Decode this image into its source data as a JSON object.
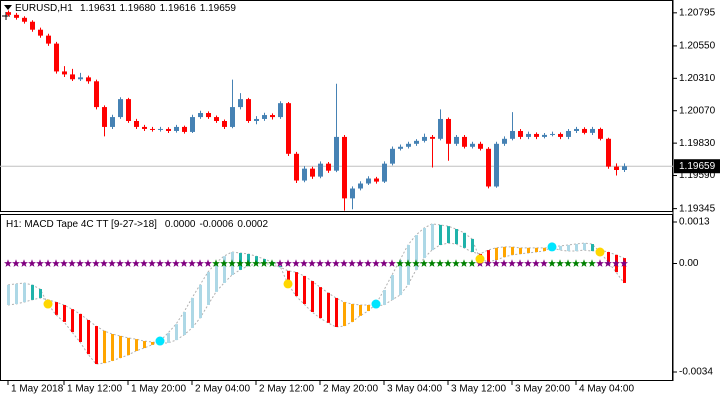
{
  "chart_data": [
    {
      "type": "candlestick",
      "title": "EURUSD,H1",
      "readout": [
        1.19631,
        {
          "value": 1.1968,
          "label": "1.19680"
        },
        1.19616,
        1.19659
      ],
      "current_price": 1.19659,
      "categories": [
        "1 May 2018",
        null,
        null,
        null,
        null,
        null,
        null,
        "1 May 12:00",
        null,
        null,
        null,
        null,
        null,
        null,
        null,
        "1 May 20:00",
        null,
        null,
        null,
        null,
        null,
        null,
        null,
        "2 May 04:00",
        null,
        null,
        null,
        null,
        null,
        null,
        null,
        "2 May 12:00",
        null,
        null,
        null,
        null,
        null,
        null,
        null,
        "2 May 20:00",
        null,
        null,
        null,
        null,
        null,
        null,
        null,
        "3 May 04:00",
        null,
        null,
        null,
        null,
        null,
        null,
        null,
        "3 May 12:00",
        null,
        null,
        null,
        null,
        null,
        null,
        null,
        "3 May 20:00",
        null,
        null,
        null,
        null,
        null,
        null,
        null,
        "4 May 04:00",
        null,
        null,
        null,
        null,
        null,
        null
      ],
      "open": [
        1.208,
        1.2078,
        1.20758,
        1.20729,
        1.2067,
        1.20626,
        1.20567,
        1.20361,
        1.20339,
        1.20303,
        1.20317,
        1.20288,
        1.20097,
        1.1995,
        1.20023,
        1.20156,
        1.19994,
        1.1995,
        1.19935,
        1.19928,
        1.19935,
        1.1992,
        1.1995,
        1.19913,
        1.20023,
        1.20053,
        1.20023,
        1.19994,
        1.1995,
        1.20097,
        1.20156,
        1.19994,
        1.20009,
        1.20038,
        1.20023,
        1.20126,
        1.19751,
        1.19553,
        1.19641,
        1.19582,
        1.19678,
        1.19626,
        1.19876,
        1.19421,
        1.19494,
        1.19531,
        1.19568,
        1.19545,
        1.19678,
        1.19788,
        1.19803,
        1.19825,
        1.19847,
        1.19876,
        1.19862,
        1.20009,
        1.19825,
        1.19876,
        1.19803,
        1.19825,
        1.19788,
        1.19509,
        1.19825,
        1.19862,
        1.1992,
        1.19876,
        1.19898,
        1.19876,
        1.19891,
        1.19898,
        1.19876,
        1.1992,
        1.19935,
        1.19906,
        1.19935,
        1.19862,
        1.19656,
        1.19631
      ],
      "high": [
        1.20812,
        1.20795,
        1.2077,
        1.2074,
        1.20685,
        1.2064,
        1.2058,
        1.204,
        1.2038,
        1.2035,
        1.2033,
        1.203,
        1.2011,
        1.2004,
        1.2017,
        1.20165,
        1.2001,
        1.19965,
        1.1995,
        1.1995,
        1.19948,
        1.19965,
        1.1996,
        1.2004,
        1.2007,
        1.20065,
        1.20035,
        1.20005,
        1.203,
        1.202,
        1.20165,
        1.2003,
        1.20055,
        1.2005,
        1.2014,
        1.20135,
        1.19765,
        1.1966,
        1.19655,
        1.19695,
        1.1969,
        1.2027,
        1.1989,
        1.1951,
        1.19548,
        1.19585,
        1.1958,
        1.19695,
        1.19805,
        1.1982,
        1.1984,
        1.1986,
        1.199,
        1.1989,
        1.2008,
        1.2002,
        1.1989,
        1.1989,
        1.1984,
        1.1984,
        1.198,
        1.1984,
        1.1988,
        1.2006,
        1.19935,
        1.19915,
        1.1991,
        1.19905,
        1.19915,
        1.1991,
        1.19935,
        1.1995,
        1.19948,
        1.1995,
        1.19945,
        1.1987,
        1.1968,
        1.1968
      ],
      "low": [
        1.20768,
        1.20745,
        1.20715,
        1.20655,
        1.2061,
        1.2055,
        1.20345,
        1.2032,
        1.2029,
        1.2029,
        1.2027,
        1.2008,
        1.1988,
        1.19935,
        1.2001,
        1.1998,
        1.19935,
        1.1992,
        1.19915,
        1.19915,
        1.19905,
        1.19908,
        1.199,
        1.19905,
        1.2001,
        1.2001,
        1.1998,
        1.19935,
        1.1994,
        1.2008,
        1.1998,
        1.1997,
        1.19995,
        1.20005,
        1.2001,
        1.19735,
        1.19535,
        1.1954,
        1.19565,
        1.1957,
        1.1961,
        1.19615,
        1.1933,
        1.1934,
        1.1948,
        1.1952,
        1.1953,
        1.19535,
        1.19665,
        1.19775,
        1.1979,
        1.1981,
        1.19835,
        1.1965,
        1.1985,
        1.197,
        1.1981,
        1.1979,
        1.1979,
        1.19775,
        1.19495,
        1.195,
        1.1981,
        1.1985,
        1.1986,
        1.1986,
        1.1986,
        1.19865,
        1.1988,
        1.1986,
        1.1986,
        1.19905,
        1.19895,
        1.1989,
        1.1985,
        1.1964,
        1.1959,
        1.19616
      ],
      "close": [
        1.2078,
        1.20758,
        1.20729,
        1.2067,
        1.20626,
        1.20567,
        1.20361,
        1.20339,
        1.20303,
        1.20317,
        1.20288,
        1.20097,
        1.1995,
        1.20023,
        1.20156,
        1.19994,
        1.1995,
        1.19935,
        1.19928,
        1.19935,
        1.1992,
        1.1995,
        1.19913,
        1.20023,
        1.20053,
        1.20023,
        1.19994,
        1.1995,
        1.20097,
        1.20156,
        1.19994,
        1.20009,
        1.20038,
        1.20023,
        1.20126,
        1.19751,
        1.19553,
        1.19641,
        1.19582,
        1.19678,
        1.19626,
        1.19876,
        1.19421,
        1.19494,
        1.19531,
        1.19568,
        1.19545,
        1.19678,
        1.19788,
        1.19803,
        1.19825,
        1.19847,
        1.19876,
        1.19862,
        1.20009,
        1.19825,
        1.19876,
        1.19803,
        1.19825,
        1.19788,
        1.19509,
        1.19825,
        1.19862,
        1.1992,
        1.19876,
        1.19898,
        1.19876,
        1.19891,
        1.19898,
        1.19876,
        1.1992,
        1.19935,
        1.19906,
        1.19935,
        1.19862,
        1.19656,
        1.19631,
        1.19659
      ],
      "ylim": [
        1.1932,
        1.2089
      ],
      "yticks": [
        1.20795,
        {
          "value": 1.2055,
          "label": "1.20550"
        },
        {
          "value": 1.2031,
          "label": "1.20310"
        },
        {
          "value": 1.2007,
          "label": "1.20070"
        },
        {
          "value": 1.1983,
          "label": "1.19830"
        },
        {
          "value": 1.1959,
          "label": "1.19590"
        },
        1.19345
      ],
      "grid": false,
      "colors": {
        "up": "#4682b4",
        "down": "#ff0000",
        "price_line": "#c0c0c0"
      }
    },
    {
      "type": "macd_tape",
      "title": "H1:  MACD Tape 4C TT [9-27->18]",
      "readout": [
        {
          "value": 0,
          "label": "0.0000"
        },
        -0.0006,
        0.0002
      ],
      "macd": [
        -0.00067,
        -0.00064,
        -0.00061,
        -0.00067,
        -0.0008,
        -0.00127,
        -0.00161,
        -0.00183,
        -0.00215,
        -0.00246,
        -0.00284,
        -0.00315,
        -0.00312,
        -0.00305,
        -0.00296,
        -0.00287,
        -0.00274,
        -0.00265,
        -0.00255,
        -0.00243,
        -0.00218,
        -0.0019,
        -0.00152,
        -0.00108,
        -0.00067,
        -0.00027,
        2e-05,
        0.00023,
        0.00036,
        0.00033,
        0.0003,
        0.00023,
        0.00014,
        5e-05,
        -8e-05,
        -0.00064,
        -0.00102,
        -0.00127,
        -0.00152,
        -0.00171,
        -0.00186,
        -0.00199,
        -0.00196,
        -0.00183,
        -0.00164,
        -0.00149,
        -0.00127,
        -0.00083,
        -0.00036,
        0.00011,
        0.00058,
        0.00089,
        0.00111,
        0.00124,
        0.00121,
        0.00117,
        0.00108,
        0.00096,
        0.00077,
        0.00014,
        5e-05,
        0.00011,
        0.0002,
        0.00027,
        0.0003,
        0.00033,
        0.00036,
        0.00039,
        0.00052,
        0.00055,
        0.00058,
        0.00061,
        0.00064,
        0.00061,
        0.00036,
        5e-05,
        -0.00027,
        -0.00061
      ],
      "signal": [
        -0.0013,
        -0.00127,
        -0.00121,
        -0.00114,
        -0.00108,
        -0.00114,
        -0.00121,
        -0.0013,
        -0.00143,
        -0.00158,
        -0.00177,
        -0.00196,
        -0.00211,
        -0.00221,
        -0.00227,
        -0.00233,
        -0.00237,
        -0.00243,
        -0.00246,
        -0.00249,
        -0.00249,
        -0.0024,
        -0.00224,
        -0.00202,
        -0.00171,
        -0.0013,
        -0.00089,
        -0.00061,
        -0.00036,
        -0.0002,
        -8e-05,
        -2e-05,
        2e-05,
        -5e-05,
        -0.00011,
        -0.00023,
        -0.00027,
        -0.00039,
        -0.00055,
        -0.00074,
        -0.00092,
        -0.00108,
        -0.00121,
        -0.00127,
        -0.0013,
        -0.0013,
        -0.00133,
        -0.0013,
        -0.00114,
        -0.00099,
        -0.00067,
        -0.0002,
        0.00017,
        0.00042,
        0.00058,
        0.00064,
        0.00061,
        0.00049,
        0.00036,
        0.0003,
        0.00042,
        0.00049,
        0.00052,
        0.00052,
        0.00049,
        0.00049,
        0.00049,
        0.00049,
        0.00049,
        0.00042,
        0.00039,
        0.00039,
        0.00042,
        0.00039,
        0.00042,
        0.00036,
        0.00027,
        0.00017
      ],
      "ylim": [
        -0.0034,
        0.0013
      ],
      "yticks": [
        0.0013,
        {
          "value": 0,
          "label": "0.00"
        },
        -0.0034
      ],
      "colors": {
        "rise_above": "#add8e6",
        "fall_above": "#20b2aa",
        "fall_below": "#ff0000",
        "rise_below": "#ffa500",
        "cross_up": "#00e5ff",
        "cross_down": "#ffd700",
        "star_on": "#008000",
        "star_off": "#800080",
        "edge": "#b0b0b0"
      }
    }
  ]
}
